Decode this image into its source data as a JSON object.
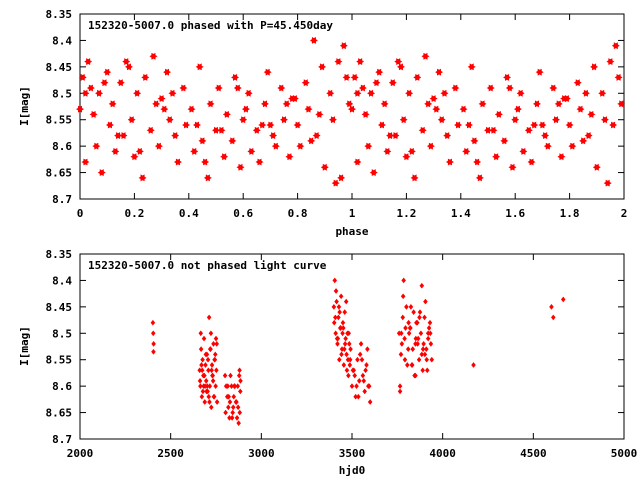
{
  "chart_data": [
    {
      "type": "scatter",
      "title": "152320-5007.0 phased with P=45.450day",
      "xlabel": "phase",
      "ylabel": "I[mag]",
      "xlim": [
        0,
        2
      ],
      "ylim": [
        8.7,
        8.35
      ],
      "y_inverted": true,
      "marker_color": "#ff0000",
      "marker": "filled-star",
      "xticks": [
        "0",
        "0.2",
        "0.4",
        "0.6",
        "0.8",
        "1",
        "1.2",
        "1.4",
        "1.6",
        "1.8",
        "2"
      ],
      "yticks": [
        "8.35",
        "8.4",
        "8.45",
        "8.5",
        "8.55",
        "8.6",
        "8.65",
        "8.7"
      ],
      "x": [
        0.0,
        0.01,
        0.02,
        0.03,
        0.05,
        0.06,
        0.07,
        0.08,
        0.1,
        0.11,
        0.12,
        0.13,
        0.15,
        0.16,
        0.18,
        0.19,
        0.2,
        0.21,
        0.23,
        0.24,
        0.26,
        0.27,
        0.29,
        0.3,
        0.32,
        0.33,
        0.35,
        0.36,
        0.38,
        0.39,
        0.41,
        0.42,
        0.44,
        0.45,
        0.47,
        0.48,
        0.5,
        0.51,
        0.53,
        0.54,
        0.56,
        0.57,
        0.59,
        0.6,
        0.62,
        0.63,
        0.65,
        0.66,
        0.68,
        0.69,
        0.71,
        0.72,
        0.74,
        0.75,
        0.77,
        0.78,
        0.8,
        0.81,
        0.83,
        0.84,
        0.86,
        0.87,
        0.89,
        0.9,
        0.92,
        0.93,
        0.95,
        0.96,
        0.98,
        0.99,
        0.02,
        0.09,
        0.14,
        0.22,
        0.28,
        0.34,
        0.43,
        0.52,
        0.61,
        0.7,
        0.79,
        0.88,
        0.94,
        0.04,
        0.17,
        0.31,
        0.46,
        0.58,
        0.67,
        0.76,
        0.85,
        0.97,
        1.0,
        1.01,
        1.02,
        1.03,
        1.05,
        1.06,
        1.07,
        1.08,
        1.1,
        1.11,
        1.12,
        1.13,
        1.15,
        1.16,
        1.18,
        1.19,
        1.2,
        1.21,
        1.23,
        1.24,
        1.26,
        1.27,
        1.29,
        1.3,
        1.32,
        1.33,
        1.35,
        1.36,
        1.38,
        1.39,
        1.41,
        1.42,
        1.44,
        1.45,
        1.47,
        1.48,
        1.5,
        1.51,
        1.53,
        1.54,
        1.56,
        1.57,
        1.59,
        1.6,
        1.62,
        1.63,
        1.65,
        1.66,
        1.68,
        1.69,
        1.71,
        1.72,
        1.74,
        1.75,
        1.77,
        1.78,
        1.8,
        1.81,
        1.83,
        1.84,
        1.86,
        1.87,
        1.89,
        1.9,
        1.92,
        1.93,
        1.95,
        1.96,
        1.98,
        1.99,
        1.02,
        1.09,
        1.14,
        1.22,
        1.28,
        1.34,
        1.43,
        1.52,
        1.61,
        1.7,
        1.79,
        1.88,
        1.94,
        1.04,
        1.17,
        1.31,
        1.46,
        1.58,
        1.67,
        1.76,
        1.85,
        1.97
      ],
      "y": [
        8.53,
        8.47,
        8.63,
        8.44,
        8.54,
        8.6,
        8.5,
        8.65,
        8.46,
        8.56,
        8.52,
        8.61,
        8.48,
        8.58,
        8.45,
        8.55,
        8.62,
        8.5,
        8.66,
        8.47,
        8.57,
        8.43,
        8.6,
        8.51,
        8.46,
        8.55,
        8.58,
        8.63,
        8.49,
        8.56,
        8.53,
        8.61,
        8.45,
        8.59,
        8.66,
        8.52,
        8.57,
        8.49,
        8.62,
        8.54,
        8.59,
        8.47,
        8.64,
        8.55,
        8.5,
        8.61,
        8.57,
        8.63,
        8.52,
        8.46,
        8.58,
        8.6,
        8.49,
        8.55,
        8.62,
        8.51,
        8.56,
        8.6,
        8.48,
        8.53,
        8.4,
        8.58,
        8.45,
        8.64,
        8.5,
        8.55,
        8.44,
        8.66,
        8.47,
        8.52,
        8.5,
        8.48,
        8.58,
        8.61,
        8.52,
        8.5,
        8.56,
        8.57,
        8.53,
        8.56,
        8.51,
        8.54,
        8.67,
        8.49,
        8.44,
        8.53,
        8.63,
        8.49,
        8.56,
        8.52,
        8.59,
        8.41,
        8.53,
        8.47,
        8.63,
        8.44,
        8.54,
        8.6,
        8.5,
        8.65,
        8.46,
        8.56,
        8.52,
        8.61,
        8.48,
        8.58,
        8.45,
        8.55,
        8.62,
        8.5,
        8.66,
        8.47,
        8.57,
        8.43,
        8.6,
        8.51,
        8.46,
        8.55,
        8.58,
        8.63,
        8.49,
        8.56,
        8.53,
        8.61,
        8.45,
        8.59,
        8.66,
        8.52,
        8.57,
        8.49,
        8.62,
        8.54,
        8.59,
        8.47,
        8.64,
        8.55,
        8.5,
        8.61,
        8.57,
        8.63,
        8.52,
        8.46,
        8.58,
        8.6,
        8.49,
        8.55,
        8.62,
        8.51,
        8.56,
        8.6,
        8.48,
        8.53,
        8.5,
        8.58,
        8.45,
        8.64,
        8.5,
        8.55,
        8.44,
        8.56,
        8.47,
        8.52,
        8.5,
        8.48,
        8.58,
        8.61,
        8.52,
        8.5,
        8.56,
        8.57,
        8.53,
        8.56,
        8.51,
        8.54,
        8.67,
        8.49,
        8.44,
        8.53,
        8.63,
        8.49,
        8.56,
        8.52,
        8.59,
        8.41
      ]
    },
    {
      "type": "scatter",
      "title": "152320-5007.0 not phased light curve",
      "xlabel": "hjd0",
      "ylabel": "I[mag]",
      "xlim": [
        2000,
        5000
      ],
      "ylim": [
        8.7,
        8.35
      ],
      "y_inverted": true,
      "marker_color": "#ff0000",
      "marker": "small-diamond",
      "xticks": [
        "2000",
        "2500",
        "3000",
        "3500",
        "4000",
        "4500",
        "5000"
      ],
      "yticks": [
        "8.35",
        "8.4",
        "8.45",
        "8.5",
        "8.55",
        "8.6",
        "8.65",
        "8.7"
      ],
      "x": [
        2402,
        2404,
        2405,
        2406,
        2660,
        2664,
        2668,
        2672,
        2676,
        2680,
        2684,
        2688,
        2692,
        2696,
        2700,
        2704,
        2708,
        2712,
        2716,
        2720,
        2724,
        2728,
        2732,
        2736,
        2740,
        2744,
        2748,
        2752,
        2756,
        2662,
        2670,
        2678,
        2686,
        2694,
        2702,
        2710,
        2718,
        2726,
        2734,
        2742,
        2750,
        2666,
        2674,
        2690,
        2706,
        2714,
        2730,
        2746,
        2754,
        2698,
        2682,
        2722,
        2738,
        2800,
        2806,
        2812,
        2818,
        2824,
        2830,
        2836,
        2842,
        2848,
        2854,
        2860,
        2866,
        2872,
        2878,
        2884,
        2803,
        2815,
        2827,
        2839,
        2851,
        2863,
        2875,
        2881,
        2820,
        2845,
        2870,
        2880,
        2885,
        3400,
        3405,
        3410,
        3415,
        3420,
        3425,
        3430,
        3435,
        3440,
        3445,
        3450,
        3455,
        3460,
        3465,
        3470,
        3475,
        3480,
        3485,
        3490,
        3402,
        3412,
        3422,
        3432,
        3442,
        3452,
        3462,
        3472,
        3482,
        3492,
        3408,
        3428,
        3448,
        3468,
        3488,
        3418,
        3438,
        3458,
        3478,
        3500,
        3510,
        3520,
        3530,
        3540,
        3550,
        3560,
        3570,
        3580,
        3590,
        3600,
        3505,
        3525,
        3545,
        3565,
        3585,
        3515,
        3535,
        3555,
        3575,
        3595,
        3760,
        3770,
        3780,
        3790,
        3800,
        3810,
        3820,
        3830,
        3840,
        3850,
        3860,
        3870,
        3880,
        3890,
        3900,
        3910,
        3920,
        3930,
        3940,
        3765,
        3775,
        3785,
        3795,
        3805,
        3815,
        3825,
        3835,
        3845,
        3855,
        3865,
        3875,
        3885,
        3895,
        3905,
        3915,
        3925,
        3935,
        3772,
        3792,
        3812,
        3832,
        3852,
        3872,
        3892,
        3912,
        3932,
        3782,
        3822,
        3862,
        3902,
        3765,
        3850,
        3885,
        3920,
        4170,
        4600,
        4610,
        4665
      ],
      "y": [
        8.48,
        8.5,
        8.535,
        8.52,
        8.57,
        8.6,
        8.53,
        8.62,
        8.55,
        8.58,
        8.51,
        8.63,
        8.56,
        8.59,
        8.54,
        8.61,
        8.57,
        8.47,
        8.6,
        8.53,
        8.64,
        8.56,
        8.58,
        8.52,
        8.62,
        8.55,
        8.6,
        8.57,
        8.63,
        8.59,
        8.56,
        8.61,
        8.58,
        8.54,
        8.6,
        8.62,
        8.53,
        8.57,
        8.59,
        8.55,
        8.51,
        8.5,
        8.57,
        8.6,
        8.55,
        8.63,
        8.58,
        8.54,
        8.52,
        8.61,
        8.6,
        8.5,
        8.62,
        8.58,
        8.6,
        8.62,
        8.64,
        8.66,
        8.58,
        8.6,
        8.65,
        8.62,
        8.6,
        8.63,
        8.66,
        8.64,
        8.58,
        8.61,
        8.65,
        8.6,
        8.63,
        8.66,
        8.6,
        8.63,
        8.67,
        8.65,
        8.62,
        8.64,
        8.6,
        8.57,
        8.59,
        8.45,
        8.4,
        8.5,
        8.44,
        8.52,
        8.47,
        8.55,
        8.49,
        8.43,
        8.53,
        8.48,
        8.56,
        8.46,
        8.51,
        8.54,
        8.5,
        8.58,
        8.52,
        8.55,
        8.48,
        8.42,
        8.51,
        8.46,
        8.54,
        8.49,
        8.52,
        8.57,
        8.5,
        8.53,
        8.47,
        8.45,
        8.5,
        8.44,
        8.56,
        8.51,
        8.49,
        8.53,
        8.55,
        8.6,
        8.57,
        8.62,
        8.55,
        8.59,
        8.52,
        8.58,
        8.61,
        8.56,
        8.6,
        8.63,
        8.57,
        8.6,
        8.54,
        8.59,
        8.53,
        8.58,
        8.62,
        8.55,
        8.57,
        8.6,
        8.5,
        8.54,
        8.47,
        8.51,
        8.45,
        8.53,
        8.49,
        8.56,
        8.46,
        8.52,
        8.48,
        8.55,
        8.5,
        8.57,
        8.47,
        8.53,
        8.51,
        8.48,
        8.55,
        8.6,
        8.52,
        8.4,
        8.49,
        8.56,
        8.5,
        8.45,
        8.53,
        8.58,
        8.48,
        8.51,
        8.46,
        8.54,
        8.52,
        8.44,
        8.57,
        8.49,
        8.52,
        8.5,
        8.55,
        8.48,
        8.56,
        8.51,
        8.47,
        8.53,
        8.55,
        8.5,
        8.43,
        8.49,
        8.52,
        8.54,
        8.61,
        8.58,
        8.41,
        8.5,
        8.56,
        8.45,
        8.47,
        8.436
      ]
    }
  ]
}
